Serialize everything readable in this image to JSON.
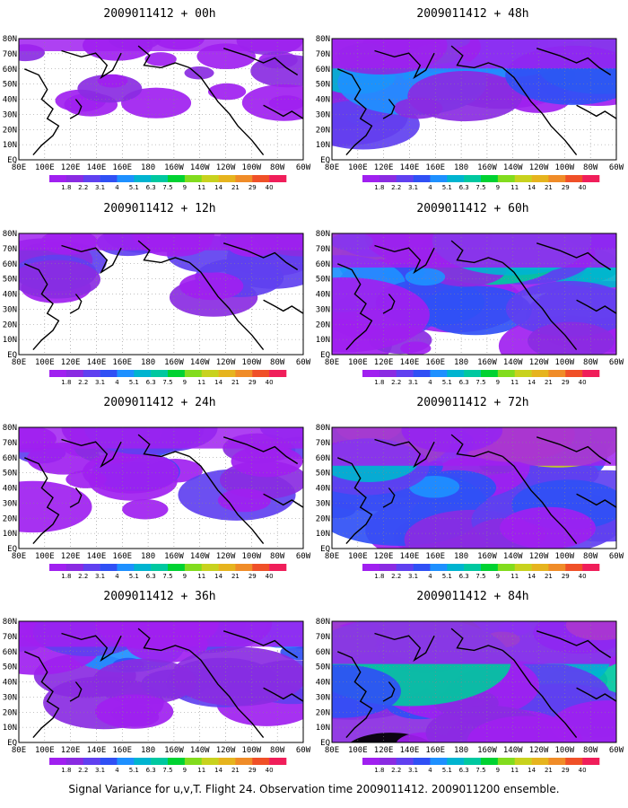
{
  "chart_data": {
    "type": "contour-map-panels",
    "caption": "Signal Variance for u,v,T. Flight 24. Observation time 2009011412. 2009011200 ensemble.",
    "lat_labels": [
      "80N",
      "70N",
      "60N",
      "50N",
      "40N",
      "30N",
      "20N",
      "10N",
      "EQ"
    ],
    "lon_labels": [
      "80E",
      "100E",
      "120E",
      "140E",
      "160E",
      "180",
      "160W",
      "140W",
      "120W",
      "100W",
      "80W",
      "60W"
    ],
    "colorbar_labels": [
      "1.8",
      "2.2",
      "3.1",
      "4",
      "5.1",
      "6.3",
      "7.5",
      "9",
      "11",
      "14",
      "21",
      "29",
      "40"
    ],
    "colorbar_colors": [
      "#a020f0",
      "#8a2be2",
      "#6040f0",
      "#3050f5",
      "#1e90ff",
      "#00b4d0",
      "#00c8a0",
      "#00d232",
      "#82dc1e",
      "#c8d21e",
      "#e6b41e",
      "#f08c28",
      "#f05028",
      "#f01e5a"
    ],
    "panels": [
      {
        "title": "2009011412 + 00h"
      },
      {
        "title": "2009011412 + 48h"
      },
      {
        "title": "2009011412 + 12h"
      },
      {
        "title": "2009011412 + 60h"
      },
      {
        "title": "2009011412 + 24h"
      },
      {
        "title": "2009011412 + 72h"
      },
      {
        "title": "2009011412 + 36h"
      },
      {
        "title": "2009011412 + 84h"
      }
    ]
  }
}
